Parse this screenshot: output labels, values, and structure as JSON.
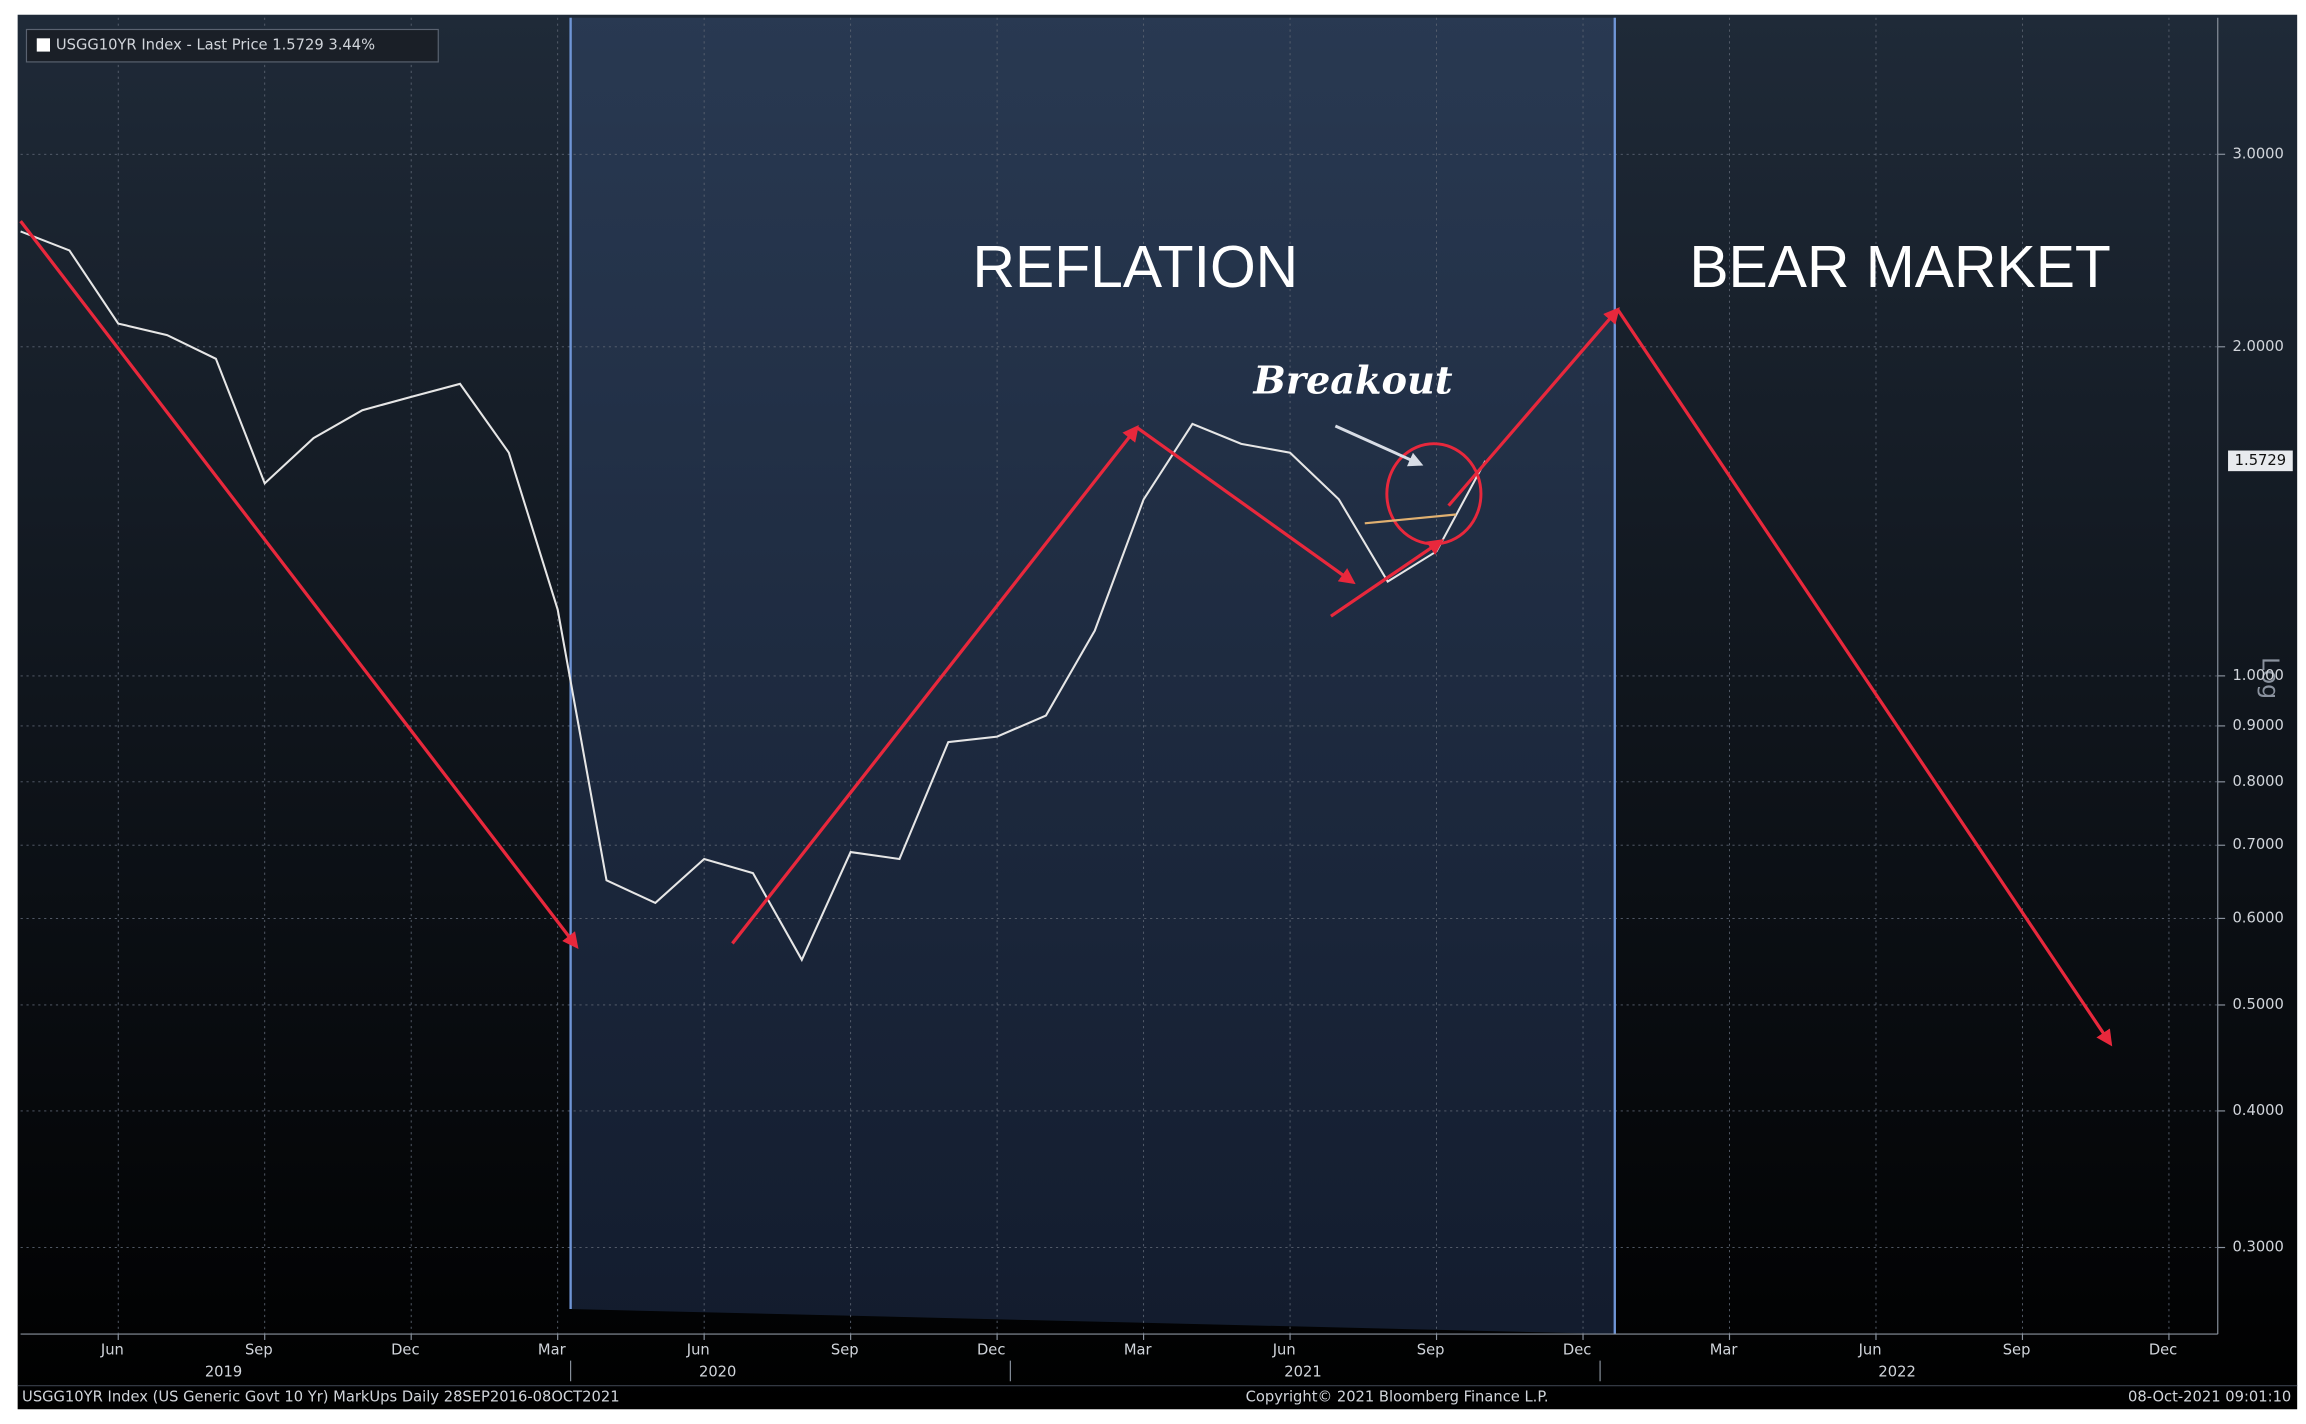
{
  "chart_data": {
    "type": "line",
    "legend": "USGG10YR Index - Last Price 1.5729 3.44%",
    "last_price": {
      "value": 1.5729,
      "label": "1.5729"
    },
    "y_axis_label": "Log",
    "log_scale": true,
    "grid": true,
    "annotations": [
      "REFLATION",
      "BEAR MARKET",
      "Breakout"
    ],
    "x": [
      "2019-04",
      "2019-05",
      "2019-06",
      "2019-07",
      "2019-08",
      "2019-09",
      "2019-10",
      "2019-11",
      "2019-12",
      "2020-01",
      "2020-02",
      "2020-03",
      "2020-04",
      "2020-05",
      "2020-06",
      "2020-07",
      "2020-08",
      "2020-09",
      "2020-10",
      "2020-11",
      "2020-12",
      "2021-01",
      "2021-02",
      "2021-03",
      "2021-04",
      "2021-05",
      "2021-06",
      "2021-07",
      "2021-08",
      "2021-09",
      "2021-10"
    ],
    "series": [
      {
        "name": "USGG10YR Index",
        "color": "#e6e6e6",
        "values": [
          2.55,
          2.45,
          2.1,
          2.05,
          1.95,
          1.5,
          1.65,
          1.75,
          1.8,
          1.85,
          1.6,
          1.15,
          0.65,
          0.62,
          0.68,
          0.66,
          0.55,
          0.69,
          0.68,
          0.87,
          0.88,
          0.92,
          1.1,
          1.45,
          1.7,
          1.63,
          1.6,
          1.45,
          1.22,
          1.3,
          1.5729
        ]
      }
    ],
    "xlim": [
      "2019-04",
      "2023-01"
    ],
    "xticks": [
      {
        "value": "2019-06",
        "label": "Jun"
      },
      {
        "value": "2019-09",
        "label": "Sep"
      },
      {
        "value": "2019-12",
        "label": "Dec"
      },
      {
        "value": "2020-03",
        "label": "Mar"
      },
      {
        "value": "2020-06",
        "label": "Jun"
      },
      {
        "value": "2020-09",
        "label": "Sep"
      },
      {
        "value": "2020-12",
        "label": "Dec"
      },
      {
        "value": "2021-03",
        "label": "Mar"
      },
      {
        "value": "2021-06",
        "label": "Jun"
      },
      {
        "value": "2021-09",
        "label": "Sep"
      },
      {
        "value": "2021-12",
        "label": "Dec"
      },
      {
        "value": "2022-03",
        "label": "Mar"
      },
      {
        "value": "2022-06",
        "label": "Jun"
      },
      {
        "value": "2022-09",
        "label": "Sep"
      },
      {
        "value": "2022-12",
        "label": "Dec"
      }
    ],
    "year_labels": [
      "2019",
      "2020",
      "2021",
      "2022"
    ],
    "ylim": [
      0.25,
      4.0
    ],
    "yticks": [
      {
        "value": 3,
        "label": "3.0000"
      },
      {
        "value": 2,
        "label": "2.0000"
      },
      {
        "value": 1,
        "label": "1.0000"
      },
      {
        "value": 0.9,
        "label": "0.9000"
      },
      {
        "value": 0.8,
        "label": "0.8000"
      },
      {
        "value": 0.7,
        "label": "0.7000"
      },
      {
        "value": 0.6,
        "label": "0.6000"
      },
      {
        "value": 0.5,
        "label": "0.5000"
      },
      {
        "value": 0.4,
        "label": "0.4000"
      },
      {
        "value": 0.3,
        "label": "0.3000"
      }
    ],
    "footer_left": "USGG10YR Index (US Generic Govt 10 Yr) MarkUps  Daily 28SEP2016-08OCT2021",
    "footer_center": "Copyright© 2021 Bloomberg Finance L.P.",
    "footer_right": "08-Oct-2021 09:01:10"
  }
}
